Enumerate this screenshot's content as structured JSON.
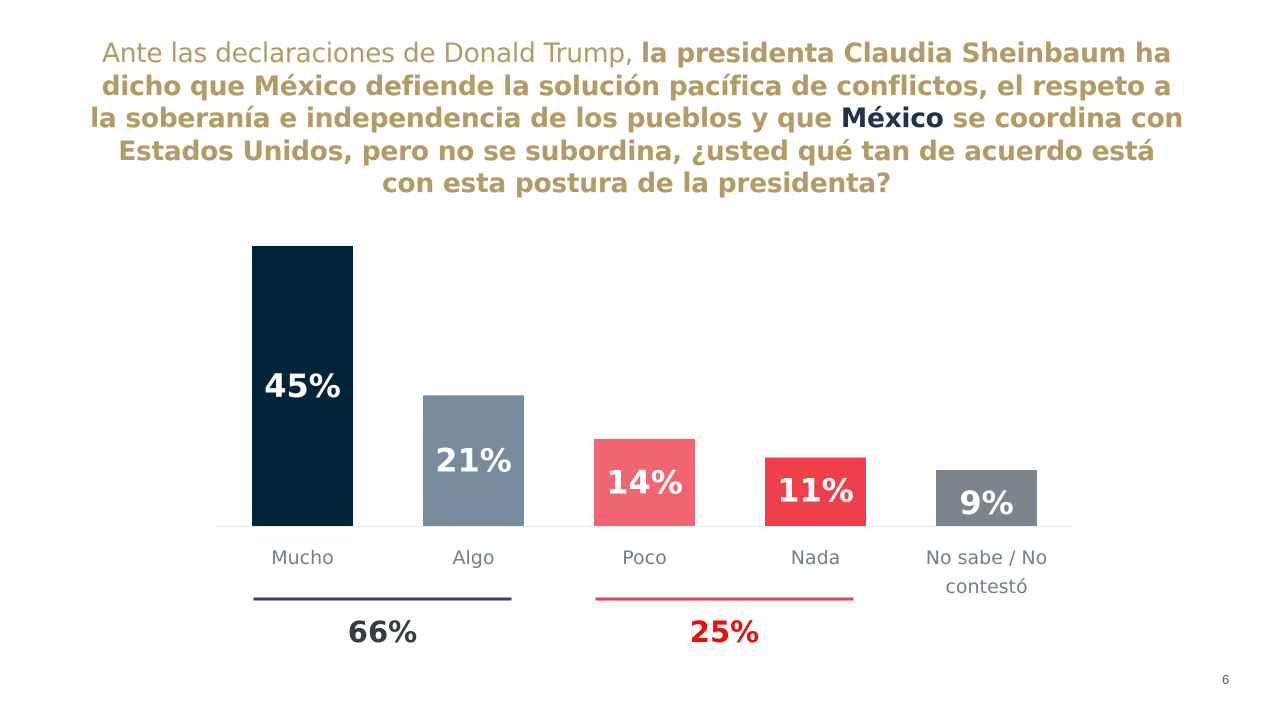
{
  "question": {
    "segments": [
      {
        "text": "Ante las declaraciones de Donald Trump, ",
        "style": "light"
      },
      {
        "text": "la presidenta Claudia Sheinbaum ha dicho que México defiende la solución pacífica de conflictos, el respeto a la soberanía e independencia de los pueblos y que ",
        "style": "bold"
      },
      {
        "text": "México",
        "style": "dark"
      },
      {
        "text": " se coordina con Estados Unidos, pero no se subordina, ¿usted qué tan de acuerdo está con esta postura de la presidenta?",
        "style": "bold"
      }
    ]
  },
  "chart_data": {
    "type": "bar",
    "title": "Ante las declaraciones de Donald Trump, la presidenta Claudia Sheinbaum ha dicho que México defiende la solución pacífica de conflictos, el respeto a la soberanía e independencia de los pueblos y que México se coordina con Estados Unidos, pero no se subordina, ¿usted qué tan de acuerdo está con esta postura de la presidenta?",
    "xlabel": "",
    "ylabel": "",
    "ylim": [
      0,
      45
    ],
    "grid": false,
    "categories": [
      "Mucho",
      "Algo",
      "Poco",
      "Nada",
      "No sabe / No contestó"
    ],
    "category_lines": [
      [
        "Mucho"
      ],
      [
        "Algo"
      ],
      [
        "Poco"
      ],
      [
        "Nada"
      ],
      [
        "No sabe / No",
        "contestó"
      ]
    ],
    "values": [
      45,
      21,
      14,
      11,
      9
    ],
    "data_labels": [
      "45%",
      "21%",
      "14%",
      "11%",
      "9%"
    ],
    "colors": [
      "#022439",
      "#778a9e",
      "#f0656f",
      "#ee3f4a",
      "#7c848c"
    ],
    "groups": [
      {
        "name": "agree",
        "categories": [
          "Mucho",
          "Algo"
        ],
        "total": 66,
        "label": "66%",
        "color": "#343d48",
        "line_color": "#3b4450"
      },
      {
        "name": "disagree",
        "categories": [
          "Poco",
          "Nada"
        ],
        "total": 25,
        "label": "25%",
        "color": "#ee0d0d",
        "line_color": "#e4424d"
      }
    ]
  },
  "page": {
    "number": "6"
  }
}
